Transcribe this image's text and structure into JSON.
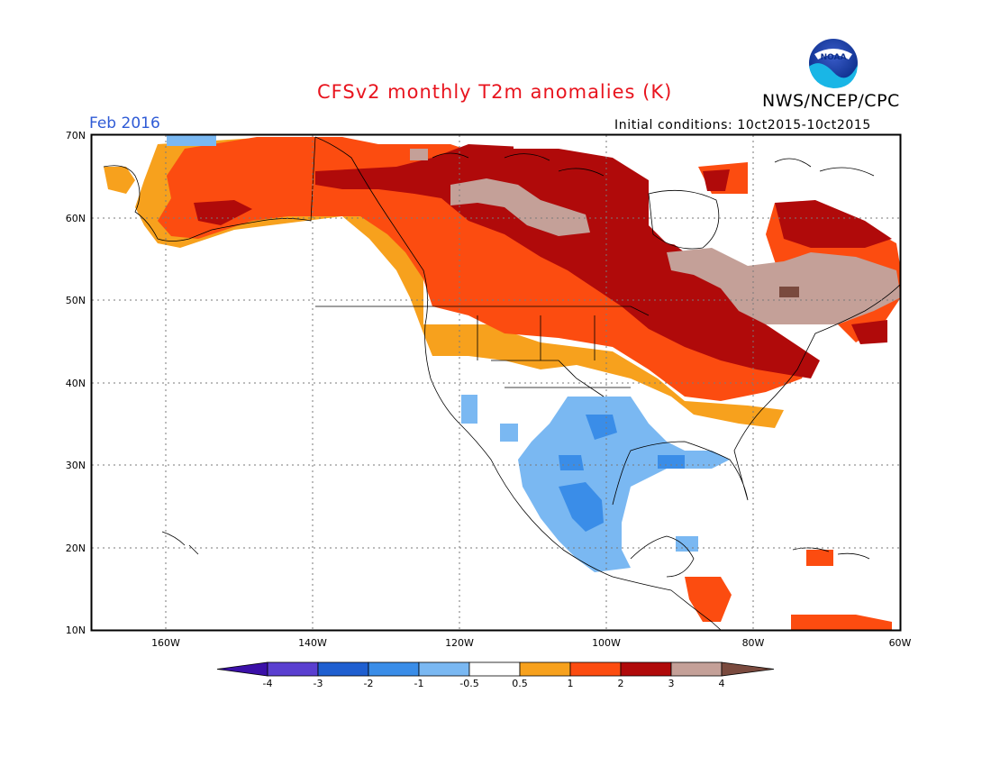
{
  "title": "CFSv2 monthly T2m anomalies (K)",
  "organization": "NWS/NCEP/CPC",
  "logo_text": "NOAA",
  "valid_month": "Feb 2016",
  "initial_conditions": "Initial conditions: 10ct2015-10ct2015",
  "map": {
    "lat_labels": [
      "70N",
      "60N",
      "50N",
      "40N",
      "30N",
      "20N",
      "10N"
    ],
    "lon_labels": [
      "160W",
      "140W",
      "120W",
      "100W",
      "80W",
      "60W"
    ],
    "extent": {
      "lon_min": -170,
      "lon_max": -60,
      "lat_min": 10,
      "lat_max": 70
    },
    "regions": [
      {
        "name": "Arctic Canada / Nunavut",
        "anomaly_class": "3 to 4"
      },
      {
        "name": "Northern Quebec",
        "anomaly_class": "3 to 4"
      },
      {
        "name": "Central Canada",
        "anomaly_class": "2 to 3"
      },
      {
        "name": "Alaska",
        "anomaly_class": "1 to 2"
      },
      {
        "name": "Yukon / BC",
        "anomaly_class": "1 to 2"
      },
      {
        "name": "Northern Plains / Great Lakes",
        "anomaly_class": "2 to 3"
      },
      {
        "name": "Northeast US",
        "anomaly_class": "1 to 2"
      },
      {
        "name": "Pacific Northwest",
        "anomaly_class": "0.5 to 1"
      },
      {
        "name": "Southwest US / Texas",
        "anomaly_class": "-1 to -0.5"
      },
      {
        "name": "Mexico",
        "anomaly_class": "-1 to -0.5"
      },
      {
        "name": "Central Mexico core",
        "anomaly_class": "-2 to -1"
      },
      {
        "name": "Central America",
        "anomaly_class": "1 to 2"
      }
    ]
  },
  "colorbar": {
    "labels": [
      "-4",
      "-3",
      "-2",
      "-1",
      "-0.5",
      "0.5",
      "1",
      "2",
      "3",
      "4"
    ],
    "colors": [
      "#3b10a8",
      "#5a3fd0",
      "#1f5fd0",
      "#3a8de8",
      "#7ab8f2",
      "#ffffff",
      "#f7a11d",
      "#fc4c10",
      "#b00a0a",
      "#c4a098",
      "#7a4a3e"
    ]
  }
}
